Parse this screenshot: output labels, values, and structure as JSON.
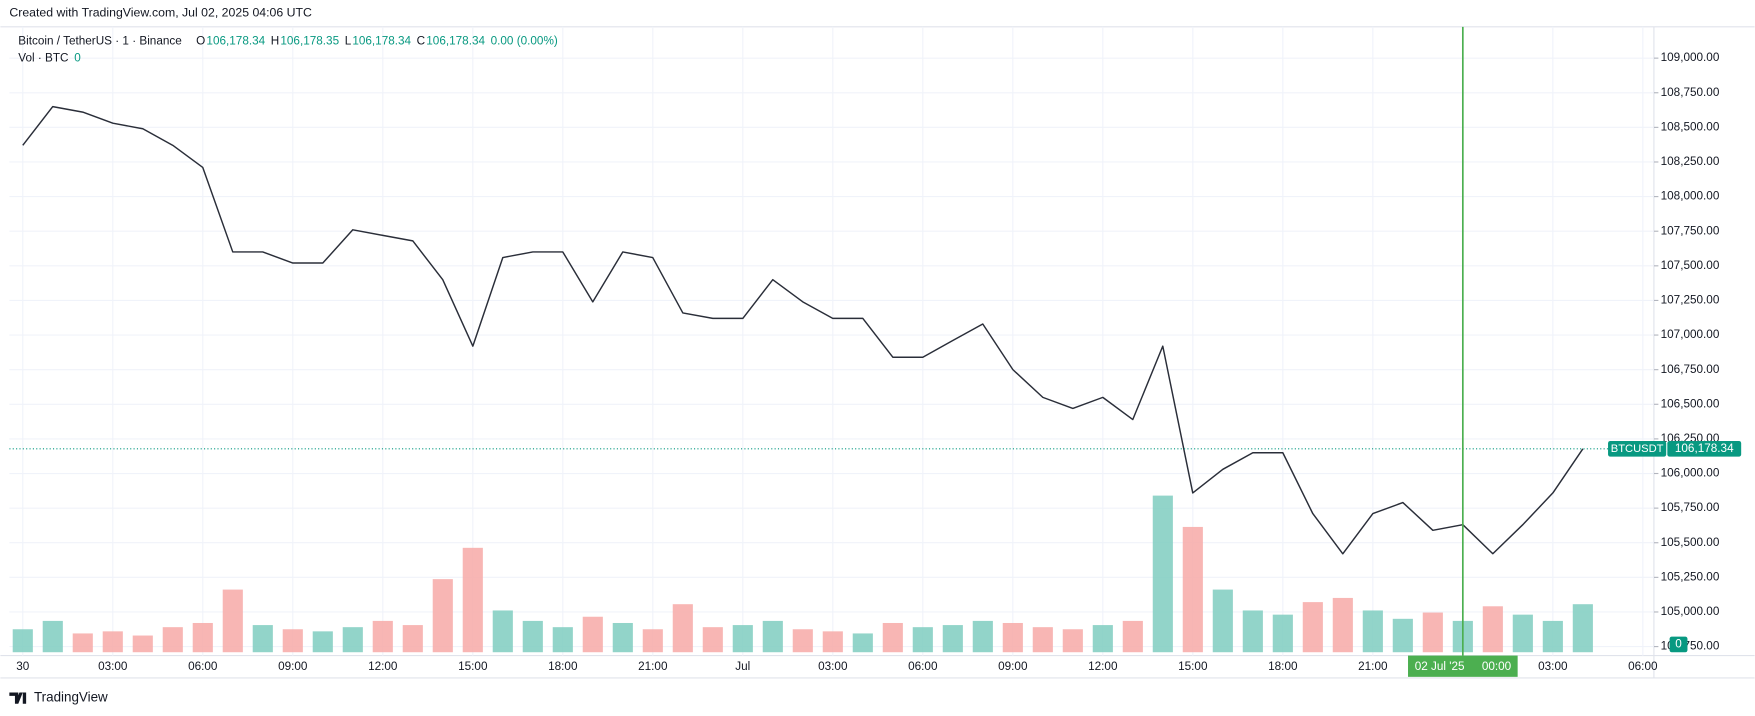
{
  "chart_data": {
    "type": "line",
    "created": "Created with TradingView.com, Jul 02, 2025 04:06 UTC",
    "title": "Bitcoin / TetherUS · 1 · Binance",
    "ohlc": [
      {
        "label": "O",
        "value": "106,178.34"
      },
      {
        "label": "H",
        "value": "106,178.35"
      },
      {
        "label": "L",
        "value": "106,178.34"
      },
      {
        "label": "C",
        "value": "106,178.34"
      }
    ],
    "change": "0.00 (0.00%)",
    "volume_title": "Vol · BTC",
    "volume_value": "0",
    "volume_axis_label": "0",
    "symbol": "BTCUSDT",
    "last_price_label": "106,178.34",
    "brand": "TradingView",
    "crosshair": {
      "date": "02 Jul '25",
      "time": "00:00",
      "color": "#4caf50"
    },
    "x": [
      "30 00:00",
      "30 01:00",
      "30 02:00",
      "30 03:00",
      "30 04:00",
      "30 05:00",
      "30 06:00",
      "30 07:00",
      "30 08:00",
      "30 09:00",
      "30 10:00",
      "30 11:00",
      "30 12:00",
      "30 13:00",
      "30 14:00",
      "30 15:00",
      "30 16:00",
      "30 17:00",
      "30 18:00",
      "30 19:00",
      "30 20:00",
      "30 21:00",
      "30 22:00",
      "30 23:00",
      "01 00:00",
      "01 01:00",
      "01 02:00",
      "01 03:00",
      "01 04:00",
      "01 05:00",
      "01 06:00",
      "01 07:00",
      "01 08:00",
      "01 09:00",
      "01 10:00",
      "01 11:00",
      "01 12:00",
      "01 13:00",
      "01 14:00",
      "01 15:00",
      "01 16:00",
      "01 17:00",
      "01 18:00",
      "01 19:00",
      "01 20:00",
      "01 21:00",
      "01 22:00",
      "01 23:00",
      "02 00:00",
      "02 01:00",
      "02 02:00",
      "02 03:00",
      "02 04:00"
    ],
    "series": [
      {
        "name": "BTCUSDT",
        "color": "#2a2e39",
        "values": [
          108370,
          108650,
          108610,
          108530,
          108490,
          108370,
          108210,
          107600,
          107600,
          107520,
          107520,
          107760,
          107720,
          107680,
          107400,
          106920,
          107560,
          107600,
          107600,
          107240,
          107600,
          107560,
          107160,
          107120,
          107120,
          107400,
          107240,
          107120,
          107120,
          106840,
          106840,
          106960,
          107080,
          106750,
          106550,
          106470,
          106550,
          106390,
          106920,
          105860,
          106030,
          106150,
          106150,
          105710,
          105420,
          105710,
          105790,
          105590,
          105630,
          105420,
          105630,
          105860,
          106178.34
        ]
      },
      {
        "name": "Vol · BTC",
        "up_color": "#7fccc0",
        "down_color": "#f7a9a7",
        "values": [
          22,
          30,
          18,
          20,
          16,
          24,
          28,
          60,
          26,
          22,
          20,
          24,
          30,
          26,
          70,
          100,
          40,
          30,
          24,
          34,
          28,
          22,
          46,
          24,
          26,
          30,
          22,
          20,
          18,
          28,
          24,
          26,
          30,
          28,
          24,
          22,
          26,
          30,
          150,
          120,
          60,
          40,
          36,
          48,
          52,
          40,
          32,
          38,
          30,
          44,
          36,
          30,
          46
        ]
      }
    ],
    "ylim": [
      104685,
      109226
    ],
    "yticks": [
      {
        "value": 104750,
        "label": "104,750.00"
      },
      {
        "value": 105000,
        "label": "105,000.00"
      },
      {
        "value": 105250,
        "label": "105,250.00"
      },
      {
        "value": 105500,
        "label": "105,500.00"
      },
      {
        "value": 105750,
        "label": "105,750.00"
      },
      {
        "value": 106000,
        "label": "106,000.00"
      },
      {
        "value": 106250,
        "label": "106,250.00"
      },
      {
        "value": 106500,
        "label": "106,500.00"
      },
      {
        "value": 106750,
        "label": "106,750.00"
      },
      {
        "value": 107000,
        "label": "107,000.00"
      },
      {
        "value": 107250,
        "label": "107,250.00"
      },
      {
        "value": 107500,
        "label": "107,500.00"
      },
      {
        "value": 107750,
        "label": "107,750.00"
      },
      {
        "value": 108000,
        "label": "108,000.00"
      },
      {
        "value": 108250,
        "label": "108,250.00"
      },
      {
        "value": 108500,
        "label": "108,500.00"
      },
      {
        "value": 108750,
        "label": "108,750.00"
      },
      {
        "value": 109000,
        "label": "109,000.00"
      }
    ],
    "xticks": [
      {
        "value": "30 00:00",
        "label": "30"
      },
      {
        "value": "30 03:00",
        "label": "03:00"
      },
      {
        "value": "30 06:00",
        "label": "06:00"
      },
      {
        "value": "30 09:00",
        "label": "09:00"
      },
      {
        "value": "30 12:00",
        "label": "12:00"
      },
      {
        "value": "30 15:00",
        "label": "15:00"
      },
      {
        "value": "30 18:00",
        "label": "18:00"
      },
      {
        "value": "30 21:00",
        "label": "21:00"
      },
      {
        "value": "01 00:00",
        "label": "Jul"
      },
      {
        "value": "01 03:00",
        "label": "03:00"
      },
      {
        "value": "01 06:00",
        "label": "06:00"
      },
      {
        "value": "01 09:00",
        "label": "09:00"
      },
      {
        "value": "01 12:00",
        "label": "12:00"
      },
      {
        "value": "01 15:00",
        "label": "15:00"
      },
      {
        "value": "01 18:00",
        "label": "18:00"
      },
      {
        "value": "01 21:00",
        "label": "21:00"
      },
      {
        "value": "02 03:00",
        "label": "03:00"
      },
      {
        "value": "02 06:00",
        "label": "06:00"
      }
    ],
    "grid": true,
    "up_color": "#089981",
    "down_color": "#f23645"
  }
}
